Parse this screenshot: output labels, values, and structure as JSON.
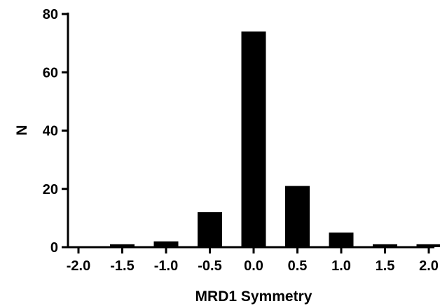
{
  "chart_data": {
    "type": "bar",
    "title": "",
    "xlabel": "MRD1 Symmetry",
    "ylabel": "N",
    "x_ticks": [
      "-2.0",
      "-1.5",
      "-1.0",
      "-0.5",
      "0.0",
      "0.5",
      "1.0",
      "1.5",
      "2.0"
    ],
    "y_ticks": [
      "0",
      "20",
      "40",
      "60",
      "80"
    ],
    "xlim": [
      -2.0,
      2.0
    ],
    "ylim": [
      0,
      80
    ],
    "grid": false,
    "legend": false,
    "bar_color": "#000000",
    "bars": [
      {
        "x": -1.5,
        "value": 1
      },
      {
        "x": -1.0,
        "value": 2
      },
      {
        "x": -0.5,
        "value": 12
      },
      {
        "x": 0.0,
        "value": 74
      },
      {
        "x": 0.5,
        "value": 21
      },
      {
        "x": 1.0,
        "value": 5
      },
      {
        "x": 1.5,
        "value": 1
      },
      {
        "x": 2.0,
        "value": 1
      }
    ]
  }
}
